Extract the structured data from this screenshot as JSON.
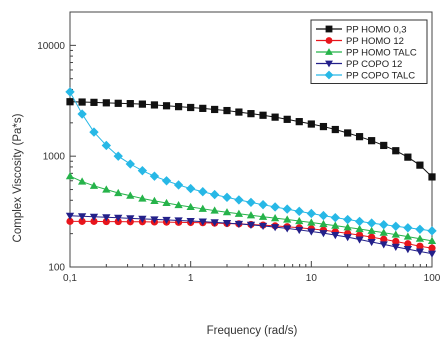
{
  "chart_data": {
    "type": "scatter",
    "xlabel": "Frequency (rad/s)",
    "ylabel": "Complex Viscosity (Pa*s)",
    "xscale": "log",
    "yscale": "log",
    "xlim": [
      0.1,
      100
    ],
    "ylim": [
      100,
      20000
    ],
    "grid": false,
    "legend_position": "top-right",
    "x_ticks": [
      {
        "value": 0.1,
        "label": "0,1"
      },
      {
        "value": 1,
        "label": "1"
      },
      {
        "value": 10,
        "label": "10"
      },
      {
        "value": 100,
        "label": "100"
      }
    ],
    "y_ticks": [
      {
        "value": 100,
        "label": "100"
      },
      {
        "value": 1000,
        "label": "1000"
      },
      {
        "value": 10000,
        "label": "10000"
      }
    ],
    "series": [
      {
        "name": "PP HOMO 0,3",
        "color": "#111111",
        "marker": "square",
        "x": [
          0.1,
          0.126,
          0.158,
          0.2,
          0.251,
          0.316,
          0.398,
          0.501,
          0.631,
          0.794,
          1,
          1.26,
          1.58,
          2,
          2.51,
          3.16,
          3.98,
          5.01,
          6.31,
          7.94,
          10,
          12.6,
          15.8,
          20,
          25.1,
          31.6,
          39.8,
          50.1,
          63.1,
          79.4,
          100
        ],
        "y": [
          3100,
          3080,
          3060,
          3030,
          3000,
          2980,
          2950,
          2900,
          2850,
          2800,
          2750,
          2700,
          2640,
          2580,
          2500,
          2420,
          2340,
          2250,
          2150,
          2050,
          1950,
          1850,
          1740,
          1620,
          1500,
          1380,
          1250,
          1120,
          980,
          830,
          650
        ]
      },
      {
        "name": "PP HOMO 12",
        "color": "#e8151c",
        "marker": "circle",
        "x": [
          0.1,
          0.126,
          0.158,
          0.2,
          0.251,
          0.316,
          0.398,
          0.501,
          0.631,
          0.794,
          1,
          1.26,
          1.58,
          2,
          2.51,
          3.16,
          3.98,
          5.01,
          6.31,
          7.94,
          10,
          12.6,
          15.8,
          20,
          25.1,
          31.6,
          39.8,
          50.1,
          63.1,
          79.4,
          100
        ],
        "y": [
          258,
          258,
          258,
          257,
          257,
          256,
          256,
          255,
          254,
          253,
          252,
          251,
          249,
          247,
          245,
          242,
          239,
          235,
          231,
          226,
          221,
          215,
          208,
          201,
          194,
          186,
          178,
          170,
          162,
          154,
          148
        ]
      },
      {
        "name": "PP HOMO TALC",
        "color": "#26b34a",
        "marker": "triangle-up",
        "x": [
          0.1,
          0.126,
          0.158,
          0.2,
          0.251,
          0.316,
          0.398,
          0.501,
          0.631,
          0.794,
          1,
          1.26,
          1.58,
          2,
          2.51,
          3.16,
          3.98,
          5.01,
          6.31,
          7.94,
          10,
          12.6,
          15.8,
          20,
          25.1,
          31.6,
          39.8,
          50.1,
          63.1,
          79.4,
          100
        ],
        "y": [
          660,
          590,
          540,
          500,
          465,
          440,
          415,
          395,
          378,
          362,
          348,
          335,
          323,
          312,
          302,
          293,
          284,
          276,
          268,
          260,
          252,
          244,
          236,
          228,
          220,
          212,
          204,
          196,
          188,
          180,
          172
        ]
      },
      {
        "name": "PP COPO 12",
        "color": "#23208a",
        "marker": "triangle-down",
        "x": [
          0.1,
          0.126,
          0.158,
          0.2,
          0.251,
          0.316,
          0.398,
          0.501,
          0.631,
          0.794,
          1,
          1.26,
          1.58,
          2,
          2.51,
          3.16,
          3.98,
          5.01,
          6.31,
          7.94,
          10,
          12.6,
          15.8,
          20,
          25.1,
          31.6,
          39.8,
          50.1,
          63.1,
          79.4,
          100
        ],
        "y": [
          290,
          287,
          284,
          281,
          278,
          275,
          272,
          269,
          266,
          263,
          260,
          257,
          253,
          249,
          245,
          240,
          235,
          229,
          223,
          216,
          209,
          202,
          194,
          186,
          177,
          168,
          160,
          152,
          145,
          138,
          132
        ]
      },
      {
        "name": "PP COPO TALC",
        "color": "#27b8e6",
        "marker": "diamond",
        "x": [
          0.1,
          0.126,
          0.158,
          0.2,
          0.251,
          0.316,
          0.398,
          0.501,
          0.631,
          0.794,
          1,
          1.26,
          1.58,
          2,
          2.51,
          3.16,
          3.98,
          5.01,
          6.31,
          7.94,
          10,
          12.6,
          15.8,
          20,
          25.1,
          31.6,
          39.8,
          50.1,
          63.1,
          79.4,
          100
        ],
        "y": [
          3800,
          2400,
          1650,
          1250,
          1000,
          850,
          740,
          660,
          600,
          550,
          510,
          478,
          450,
          425,
          403,
          383,
          365,
          348,
          333,
          318,
          304,
          291,
          279,
          268,
          258,
          249,
          241,
          233,
          226,
          219,
          212
        ]
      }
    ]
  }
}
